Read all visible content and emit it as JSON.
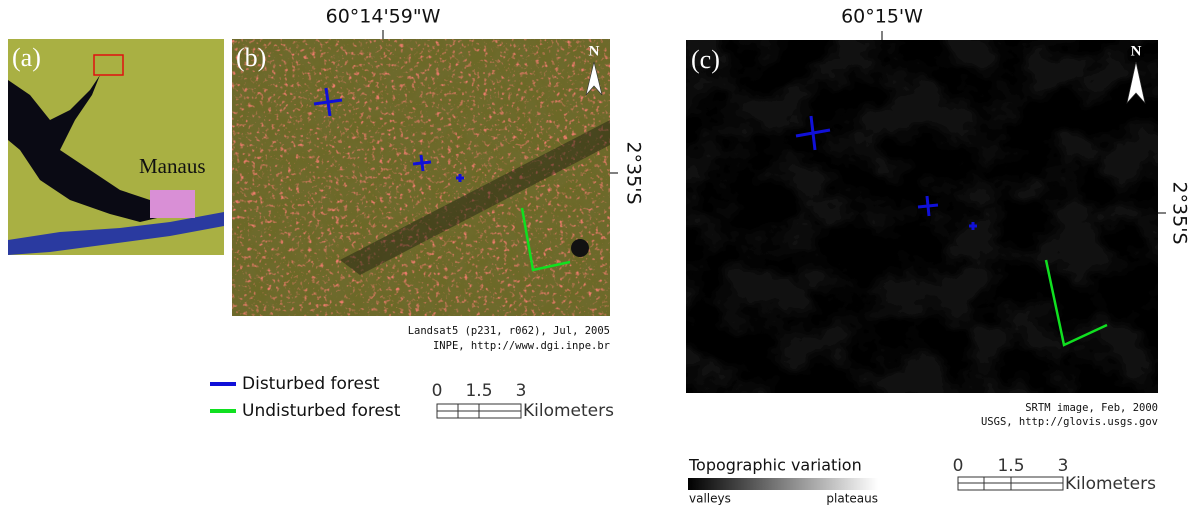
{
  "panels": [
    {
      "label": "(a)",
      "place": "Manaus"
    },
    {
      "label": "(b)",
      "longitude": "60°14'59\"W",
      "latitude": "2°35'S",
      "north": "N",
      "credit": [
        "Landsat5 (p231, r062), Jul, 2005",
        "INPE, http://www.dgi.inpe.br"
      ]
    },
    {
      "label": "(c)",
      "longitude": "60°15'W",
      "latitude": "2°35'S",
      "north": "N",
      "credit": [
        "SRTM image, Feb, 2000",
        "USGS, http://glovis.usgs.gov"
      ]
    }
  ],
  "legend": {
    "items": [
      "Disturbed forest",
      "Undisturbed forest"
    ]
  },
  "scale_bars": [
    {
      "ticks": [
        "0",
        "1.5",
        "3"
      ],
      "unit": "Kilometers"
    },
    {
      "ticks": [
        "0",
        "1.5",
        "3"
      ],
      "unit": "Kilometers"
    }
  ],
  "colorbar": {
    "title": "Topographic variation",
    "low": "valleys",
    "high": "plateaus"
  }
}
